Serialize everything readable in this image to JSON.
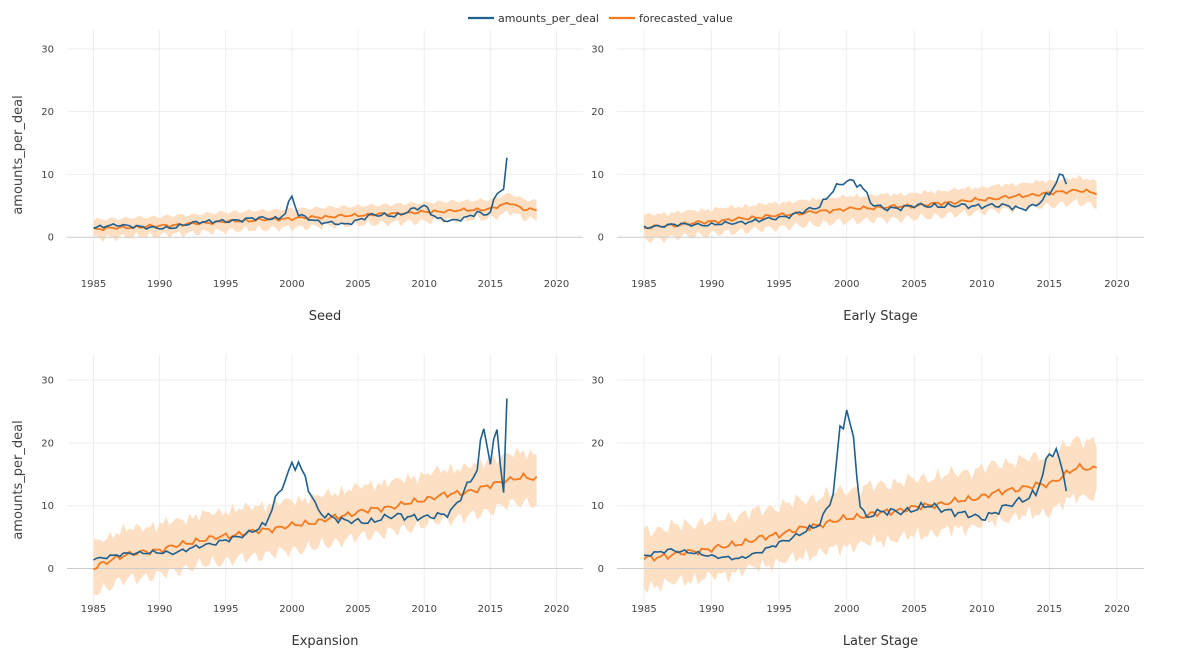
{
  "chart_data": {
    "type": "line",
    "legend": {
      "position": "top-center",
      "entries": [
        {
          "name": "amounts_per_deal",
          "color": "#1f5f8f"
        },
        {
          "name": "forecasted_value",
          "color": "#f47a1f"
        }
      ]
    },
    "band_color": "#fde0c4",
    "grid": true,
    "xlim": [
      1983,
      2022
    ],
    "xticks": [
      1985,
      1990,
      1995,
      2000,
      2005,
      2010,
      2015,
      2020
    ],
    "panels": [
      {
        "title": "Seed",
        "ylabel": "amounts_per_deal",
        "ylim": [
          -10,
          33
        ],
        "yticks": [
          0,
          10,
          20,
          30
        ],
        "actual": {
          "x": [
            1985,
            1987,
            1989,
            1991,
            1993,
            1995,
            1997,
            1999,
            1999.5,
            2000,
            2000.5,
            2002,
            2004,
            2006,
            2008,
            2010,
            2011,
            2012,
            2013,
            2014,
            2014.5,
            2015,
            2015.5,
            2016,
            2016.25
          ],
          "y": [
            1.5,
            2,
            1.5,
            1.5,
            2.5,
            2.5,
            3,
            3,
            4,
            6.5,
            3.5,
            2.5,
            2,
            3.5,
            3.5,
            5,
            3,
            2.5,
            3,
            4,
            3.5,
            4,
            7,
            8,
            12
          ]
        },
        "forecast": {
          "x": [
            1985,
            1990,
            1995,
            2000,
            2005,
            2010,
            2015,
            2016.5,
            2017.5,
            2018.5
          ],
          "y": [
            1.3,
            1.8,
            2.5,
            3,
            3.5,
            4,
            4.5,
            5.5,
            4.5,
            4.3
          ]
        },
        "band_width": 1.5
      },
      {
        "title": "Early Stage",
        "ylim": [
          -10,
          33
        ],
        "yticks": [
          0,
          10,
          20,
          30
        ],
        "actual": {
          "x": [
            1985,
            1987,
            1990,
            1993,
            1996,
            1998,
            1999,
            2000,
            2001,
            2002,
            2003,
            2005,
            2008,
            2010,
            2012,
            2013,
            2014,
            2015,
            2015.5,
            2016,
            2016.3
          ],
          "y": [
            1.5,
            2,
            2,
            2.5,
            3.5,
            5,
            7.5,
            9,
            8.5,
            5,
            4.5,
            5,
            5,
            5,
            5,
            4.5,
            5,
            7,
            9,
            10,
            8.5
          ]
        },
        "forecast": {
          "x": [
            1985,
            1990,
            1995,
            2000,
            2005,
            2010,
            2015,
            2017,
            2018.5
          ],
          "y": [
            1.5,
            2.5,
            3.5,
            4.5,
            5,
            6,
            7,
            7.5,
            7
          ]
        },
        "band_width": 2
      },
      {
        "title": "Expansion",
        "ylabel": "amounts_per_deal",
        "ylim": [
          -9,
          34
        ],
        "yticks": [
          0,
          10,
          20,
          30
        ],
        "actual": {
          "x": [
            1985,
            1988,
            1991,
            1994,
            1996,
            1998,
            1999,
            2000,
            2000.5,
            2001,
            2002,
            2004,
            2006,
            2008,
            2010,
            2012,
            2013,
            2014,
            2014.5,
            2015,
            2015.5,
            2016,
            2016.3
          ],
          "y": [
            1.5,
            2.5,
            2.5,
            4,
            5,
            7,
            12,
            16.5,
            17,
            14,
            9,
            7.5,
            7.5,
            8.5,
            8,
            9,
            12,
            16,
            23,
            17,
            22,
            12,
            29
          ]
        },
        "forecast": {
          "x": [
            1985,
            1987,
            1990,
            1993,
            1996,
            1999,
            2002,
            2005,
            2008,
            2011,
            2014,
            2016,
            2017.5,
            2018.5
          ],
          "y": [
            0,
            2,
            3,
            4.5,
            5.5,
            6.5,
            7.5,
            9,
            10,
            11.5,
            12.5,
            14,
            14.5,
            14.3
          ]
        },
        "band_width": 4
      },
      {
        "title": "Later Stage",
        "ylim": [
          -9,
          34
        ],
        "yticks": [
          0,
          10,
          20,
          30
        ],
        "actual": {
          "x": [
            1985,
            1987,
            1990,
            1992,
            1994,
            1996,
            1998,
            1999,
            1999.5,
            2000,
            2000.5,
            2001,
            2001.5,
            2002,
            2004,
            2006,
            2008,
            2010,
            2012,
            2014,
            2015,
            2015.5,
            2016,
            2016.3
          ],
          "y": [
            2,
            3,
            2,
            1.5,
            3,
            5,
            7,
            12,
            22,
            25,
            20,
            10,
            8,
            9,
            9,
            10,
            9,
            8,
            10,
            12,
            18,
            19,
            15,
            13
          ]
        },
        "forecast": {
          "x": [
            1985,
            1988,
            1991,
            1994,
            1997,
            2000,
            2003,
            2006,
            2009,
            2012,
            2015,
            2017,
            2018.5
          ],
          "y": [
            1.5,
            2.5,
            3.5,
            5,
            6.5,
            8,
            9,
            10,
            11,
            12.5,
            13.5,
            16,
            16
          ]
        },
        "band_width": 4.5
      }
    ]
  }
}
